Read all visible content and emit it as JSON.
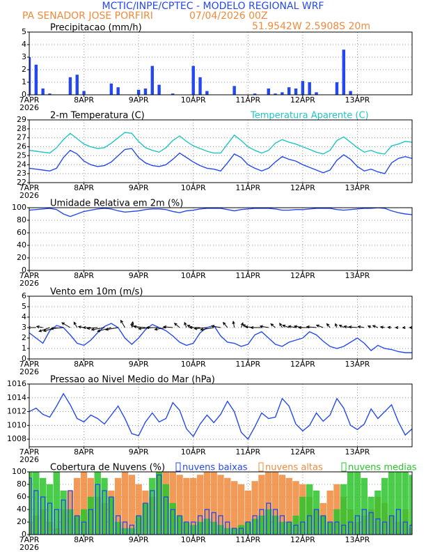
{
  "header": {
    "title": "MCTIC/INPE/CPTEC - MODELO REGIONAL WRF",
    "station": "PA SENADOR JOSE PORFIRI",
    "run": "07/04/2026 00Z",
    "location": "51.9542W 2.5908S 20m"
  },
  "chart_data": [
    {
      "type": "bar",
      "title": "Precipitacao (mm/h)",
      "color": "#2448f0",
      "values": [
        3.0,
        2.4,
        0.5,
        0.1,
        0,
        0,
        1.4,
        1.6,
        0.3,
        0,
        0,
        0,
        0.9,
        0.6,
        0,
        0,
        0.4,
        0.5,
        2.3,
        0.8,
        0,
        0.1,
        0,
        0,
        2.3,
        1.4,
        0.3,
        0,
        0,
        0,
        0.7,
        0,
        0,
        0.1,
        0,
        0.5,
        0.1,
        0.2,
        0.6,
        0.5,
        1.1,
        1.0,
        0.2,
        0,
        0,
        1.0,
        3.6,
        0.3,
        0,
        0,
        0,
        0,
        0,
        0,
        0,
        0,
        0
      ],
      "xlim": [
        0,
        168
      ],
      "xticks": [
        {
          "value": 0,
          "label": "7APR"
        },
        {
          "value": 24,
          "label": "8APR"
        },
        {
          "value": 48,
          "label": "9APR"
        },
        {
          "value": 72,
          "label": "10APR"
        },
        {
          "value": 96,
          "label": "11APR"
        },
        {
          "value": 120,
          "label": "12APR"
        },
        {
          "value": 144,
          "label": "13APR"
        }
      ],
      "x_year_label": "2026",
      "ylim": [
        0,
        5
      ],
      "yticks": [
        0,
        1,
        2,
        3,
        4,
        5
      ],
      "grid": true
    },
    {
      "type": "line",
      "series": [
        {
          "name": "2-m Temperatura (C)",
          "color": "#2448f0",
          "values": [
            23.6,
            23.5,
            23.4,
            23.3,
            23.6,
            24.8,
            25.6,
            25.2,
            24.4,
            24.0,
            23.8,
            23.9,
            24.3,
            25.0,
            25.7,
            25.8,
            24.8,
            24.2,
            23.9,
            23.8,
            24.0,
            24.6,
            25.3,
            24.8,
            24.3,
            23.9,
            23.6,
            23.5,
            23.3,
            24.2,
            25.2,
            24.8,
            24.0,
            23.6,
            23.3,
            23.6,
            24.3,
            24.9,
            24.6,
            24.4,
            24.0,
            23.7,
            23.4,
            23.1,
            23.4,
            24.5,
            25.1,
            24.6,
            23.8,
            23.3,
            23.5,
            23.2,
            23.0,
            24.2,
            24.7,
            24.9,
            24.7
          ]
        },
        {
          "name": "Temperatura Aparente (C)",
          "color": "#1fc4c4",
          "values": [
            25.6,
            25.5,
            25.4,
            25.3,
            25.9,
            26.8,
            27.5,
            26.9,
            26.3,
            26.0,
            25.8,
            25.9,
            26.4,
            27.0,
            27.6,
            27.5,
            26.6,
            25.9,
            25.6,
            25.4,
            25.9,
            26.7,
            27.2,
            26.6,
            26.1,
            25.8,
            25.5,
            25.3,
            25.3,
            26.3,
            27.3,
            26.7,
            26.0,
            25.6,
            25.3,
            25.6,
            26.4,
            26.8,
            26.5,
            26.3,
            26.0,
            25.7,
            25.4,
            25.2,
            25.6,
            26.7,
            27.1,
            26.5,
            25.9,
            25.4,
            25.6,
            25.3,
            25.2,
            26.1,
            26.3,
            26.6,
            26.5
          ]
        }
      ],
      "xlim": [
        0,
        168
      ],
      "xticks": [
        {
          "value": 0,
          "label": "7APR"
        },
        {
          "value": 24,
          "label": "8APR"
        },
        {
          "value": 48,
          "label": "9APR"
        },
        {
          "value": 72,
          "label": "10APR"
        },
        {
          "value": 96,
          "label": "11APR"
        },
        {
          "value": 120,
          "label": "12APR"
        },
        {
          "value": 144,
          "label": "13APR"
        }
      ],
      "x_year_label": "2026",
      "ylim": [
        22,
        29
      ],
      "yticks": [
        22,
        23,
        24,
        25,
        26,
        27,
        28,
        29
      ],
      "grid": true
    },
    {
      "type": "line",
      "title": "Umidade Relativa em 2m (%)",
      "series": [
        {
          "color": "#2448f0",
          "values": [
            96,
            97,
            98,
            99,
            97,
            90,
            86,
            90,
            94,
            96,
            98,
            99,
            98,
            95,
            93,
            94,
            95,
            97,
            98,
            98,
            97,
            94,
            92,
            95,
            96,
            98,
            99,
            99,
            99,
            97,
            95,
            97,
            98,
            99,
            99,
            99,
            98,
            96,
            96,
            97,
            97,
            98,
            99,
            99,
            99,
            97,
            96,
            97,
            98,
            99,
            99,
            100,
            99,
            95,
            92,
            90,
            89
          ]
        }
      ],
      "xlim": [
        0,
        168
      ],
      "xticks": [
        {
          "value": 0,
          "label": "7APR"
        },
        {
          "value": 24,
          "label": "8APR"
        },
        {
          "value": 48,
          "label": "9APR"
        },
        {
          "value": 72,
          "label": "10APR"
        },
        {
          "value": 96,
          "label": "11APR"
        },
        {
          "value": 120,
          "label": "12APR"
        },
        {
          "value": 144,
          "label": "13APR"
        }
      ],
      "x_year_label": "2026",
      "ylim": [
        0,
        100
      ],
      "yticks": [
        0,
        20,
        40,
        60,
        80,
        100
      ],
      "grid": true
    },
    {
      "type": "wind",
      "title": "Vento em 10m (m/s)",
      "color": "#2448f0",
      "arrow_color": "#000000",
      "values": [
        2.5,
        2.0,
        1.5,
        2.7,
        3.2,
        3.0,
        2.3,
        1.5,
        1.3,
        1.8,
        2.5,
        3.1,
        3.4,
        3.0,
        2.0,
        1.4,
        2.0,
        2.8,
        3.3,
        3.0,
        2.7,
        2.2,
        1.6,
        1.3,
        1.5,
        2.5,
        3.0,
        3.2,
        2.2,
        1.6,
        1.5,
        1.2,
        1.4,
        2.3,
        2.6,
        2.0,
        1.4,
        1.2,
        1.6,
        1.8,
        2.0,
        2.6,
        2.3,
        1.7,
        1.2,
        1.0,
        1.2,
        1.6,
        2.0,
        1.5,
        0.8,
        1.3,
        1.0,
        0.9,
        0.7,
        0.6,
        0.6
      ],
      "wind_direction": [
        80,
        90,
        100,
        70,
        75,
        85,
        120,
        150,
        100,
        90,
        85,
        80,
        75,
        80,
        150,
        190,
        110,
        95,
        85,
        90,
        80,
        95,
        130,
        160,
        110,
        90,
        85,
        80,
        100,
        140,
        170,
        200,
        120,
        95,
        90,
        100,
        130,
        150,
        110,
        100,
        100,
        90,
        95,
        110,
        140,
        160,
        120,
        100,
        95,
        100,
        120,
        110,
        100,
        95,
        90,
        85,
        90
      ],
      "xlim": [
        0,
        168
      ],
      "xticks": [
        {
          "value": 0,
          "label": "7APR"
        },
        {
          "value": 24,
          "label": "8APR"
        },
        {
          "value": 48,
          "label": "9APR"
        },
        {
          "value": 72,
          "label": "10APR"
        },
        {
          "value": 96,
          "label": "11APR"
        },
        {
          "value": 120,
          "label": "12APR"
        },
        {
          "value": 144,
          "label": "13APR"
        }
      ],
      "x_year_label": "2026",
      "ylim": [
        0,
        6
      ],
      "yticks": [
        0,
        1,
        2,
        3,
        4,
        5,
        6
      ],
      "grid": true
    },
    {
      "type": "line",
      "title": "Pressao ao Nivel Medio do Mar (hPa)",
      "series": [
        {
          "color": "#2448f0",
          "values": [
            1012.0,
            1012.5,
            1011.6,
            1011.2,
            1012.8,
            1014.6,
            1013.0,
            1011.0,
            1010.5,
            1011.5,
            1011.0,
            1010.2,
            1011.5,
            1012.8,
            1011.0,
            1008.8,
            1008.5,
            1010.5,
            1011.8,
            1010.5,
            1011.0,
            1013.3,
            1012.2,
            1009.5,
            1008.4,
            1010.2,
            1011.5,
            1010.4,
            1011.6,
            1013.5,
            1012.0,
            1009.0,
            1008.0,
            1009.8,
            1011.8,
            1011.0,
            1011.2,
            1013.9,
            1012.8,
            1010.2,
            1009.2,
            1010.0,
            1011.8,
            1010.6,
            1011.5,
            1013.9,
            1012.5,
            1010.0,
            1009.4,
            1010.2,
            1012.4,
            1011.0,
            1012.0,
            1013.0,
            1010.5,
            1008.6,
            1009.5
          ]
        }
      ],
      "xlim": [
        0,
        168
      ],
      "xticks": [
        {
          "value": 0,
          "label": "7APR"
        },
        {
          "value": 24,
          "label": "8APR"
        },
        {
          "value": 48,
          "label": "9APR"
        },
        {
          "value": 72,
          "label": "10APR"
        },
        {
          "value": 96,
          "label": "11APR"
        },
        {
          "value": 120,
          "label": "12APR"
        },
        {
          "value": 144,
          "label": "13APR"
        }
      ],
      "x_year_label": "2026",
      "ylim": [
        1006.9,
        1016
      ],
      "yticks": [
        1008,
        1010,
        1012,
        1014,
        1016
      ],
      "grid": true
    },
    {
      "type": "bar",
      "title": "Cobertura de Nuvens (%)",
      "series": [
        {
          "name": "nuvens altas",
          "color": "#f08a3c",
          "values": [
            20,
            30,
            40,
            20,
            10,
            40,
            70,
            90,
            100,
            90,
            60,
            50,
            70,
            90,
            100,
            95,
            80,
            70,
            60,
            100,
            100,
            100,
            95,
            90,
            90,
            95,
            100,
            100,
            95,
            90,
            85,
            80,
            70,
            85,
            95,
            100,
            100,
            95,
            90,
            85,
            80,
            60,
            40,
            50,
            70,
            80,
            60,
            40,
            20,
            30,
            40,
            60,
            50,
            30,
            20,
            40,
            10
          ]
        },
        {
          "name": "nuvens medias",
          "color": "#2cc42c",
          "values": [
            100,
            100,
            90,
            80,
            100,
            70,
            40,
            30,
            40,
            60,
            100,
            90,
            60,
            20,
            10,
            10,
            30,
            50,
            90,
            100,
            80,
            50,
            30,
            20,
            15,
            20,
            25,
            20,
            15,
            10,
            10,
            15,
            20,
            25,
            30,
            40,
            30,
            20,
            20,
            30,
            60,
            80,
            70,
            30,
            20,
            40,
            80,
            100,
            100,
            90,
            60,
            70,
            90,
            100,
            100,
            100,
            95
          ]
        },
        {
          "name": "nuvens baixas",
          "color": "#2448f0",
          "values": [
            90,
            70,
            60,
            50,
            40,
            55,
            70,
            30,
            20,
            40,
            80,
            70,
            60,
            30,
            20,
            15,
            30,
            50,
            70,
            95,
            60,
            40,
            30,
            20,
            20,
            30,
            40,
            35,
            30,
            20,
            10,
            10,
            20,
            30,
            40,
            50,
            40,
            30,
            20,
            15,
            20,
            30,
            40,
            30,
            20,
            20,
            15,
            20,
            30,
            40,
            35,
            25,
            20,
            30,
            40,
            20,
            15
          ]
        }
      ],
      "xlim": [
        0,
        168
      ],
      "xticks": [
        {
          "value": 0,
          "label": "7APR"
        },
        {
          "value": 24,
          "label": "8APR"
        },
        {
          "value": 48,
          "label": "9APR"
        },
        {
          "value": 72,
          "label": "10APR"
        },
        {
          "value": 96,
          "label": "11APR"
        },
        {
          "value": 120,
          "label": "12APR"
        },
        {
          "value": 144,
          "label": "13APR"
        }
      ],
      "x_year_label": "2026",
      "ylim": [
        0,
        100
      ],
      "yticks": [
        0,
        20,
        40,
        60,
        80,
        100
      ],
      "grid": true
    }
  ]
}
